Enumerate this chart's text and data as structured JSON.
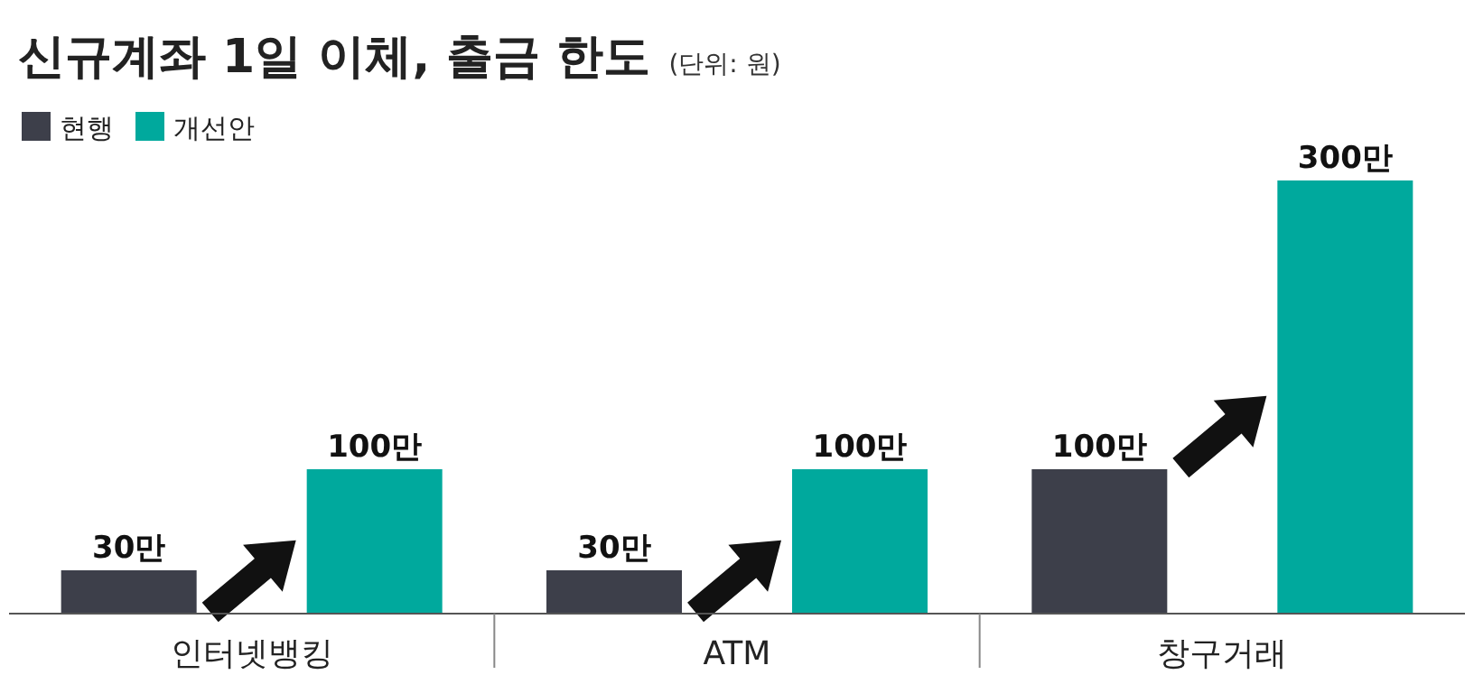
{
  "chart_data": {
    "type": "bar",
    "title": "신규계좌 1일 이체, 출금 한도",
    "subtitle": "(단위: 원)",
    "categories": [
      "인터넷뱅킹",
      "ATM",
      "창구거래"
    ],
    "series": [
      {
        "name": "현행",
        "color": "#3d3f4a",
        "values": [
          30,
          30,
          100
        ],
        "value_labels": [
          "30만",
          "30만",
          "100만"
        ]
      },
      {
        "name": "개선안",
        "color": "#00a99d",
        "values": [
          100,
          100,
          300
        ],
        "value_labels": [
          "100만",
          "100만",
          "300만"
        ]
      }
    ],
    "legend": "top left"
  }
}
